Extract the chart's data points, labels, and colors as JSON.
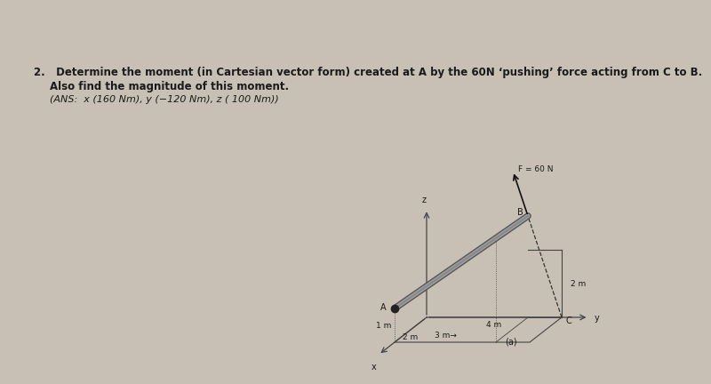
{
  "page_bg": "#c8c0b4",
  "diagram_bg": "#c8c0b4",
  "text_color": "#1a1a1a",
  "line_color": "#444444",
  "title_line1": "2.   Determine the moment (in Cartesian vector form) created at A by the 60N ‘pushing’ force acting from C to B.",
  "title_line2": "Also find the magnitude of this moment.",
  "title_line3": "(ANS:  x (160 Nm), y (−120 Nm), z ( 100 Nm))",
  "diagram_label": "(a)",
  "force_label": "F = 60 N",
  "title_fontsize": 8.5,
  "ans_fontsize": 8.0,
  "dim_fontsize": 6.5,
  "label_fontsize": 7.0
}
